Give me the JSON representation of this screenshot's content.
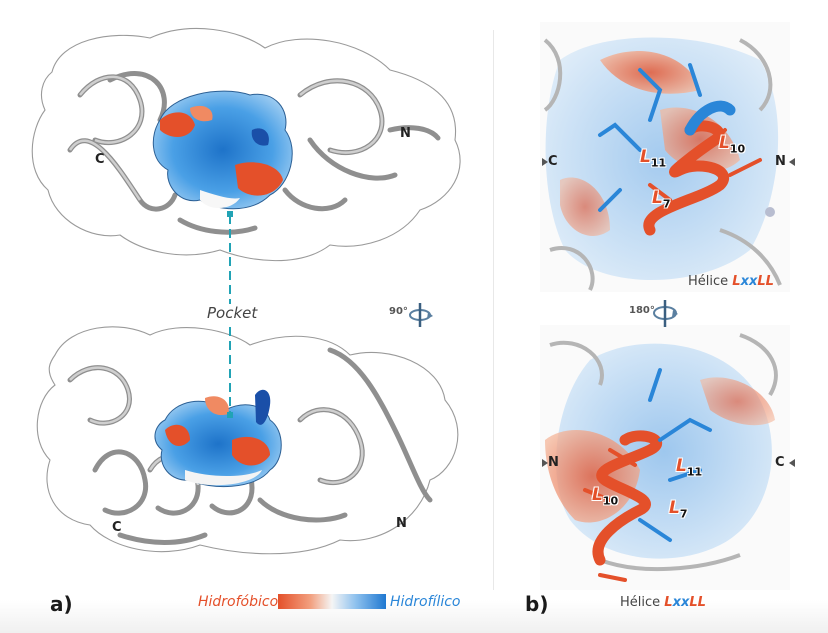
{
  "panels": {
    "a": {
      "letter": "a)"
    },
    "b": {
      "letter": "b)"
    }
  },
  "pocket_label": "Pocket",
  "rotation_labels": {
    "a": "90°",
    "b": "180°"
  },
  "termini": {
    "n": "N",
    "c": "C"
  },
  "scale_bar": {
    "low": "Hidrofóbico",
    "high": "Hidrofílico",
    "colors": {
      "hydrophobic": "#e4502a",
      "neutral": "#f5f5f5",
      "hydrophilic": "#1f78d1"
    }
  },
  "helix": {
    "word": "Hélice",
    "motif": [
      "L",
      "x",
      "x",
      "L",
      "L"
    ]
  },
  "residues": {
    "l7": {
      "letter": "L",
      "number": "7"
    },
    "l10": {
      "letter": "L",
      "number": "10"
    },
    "l11": {
      "letter": "L",
      "number": "11"
    }
  }
}
